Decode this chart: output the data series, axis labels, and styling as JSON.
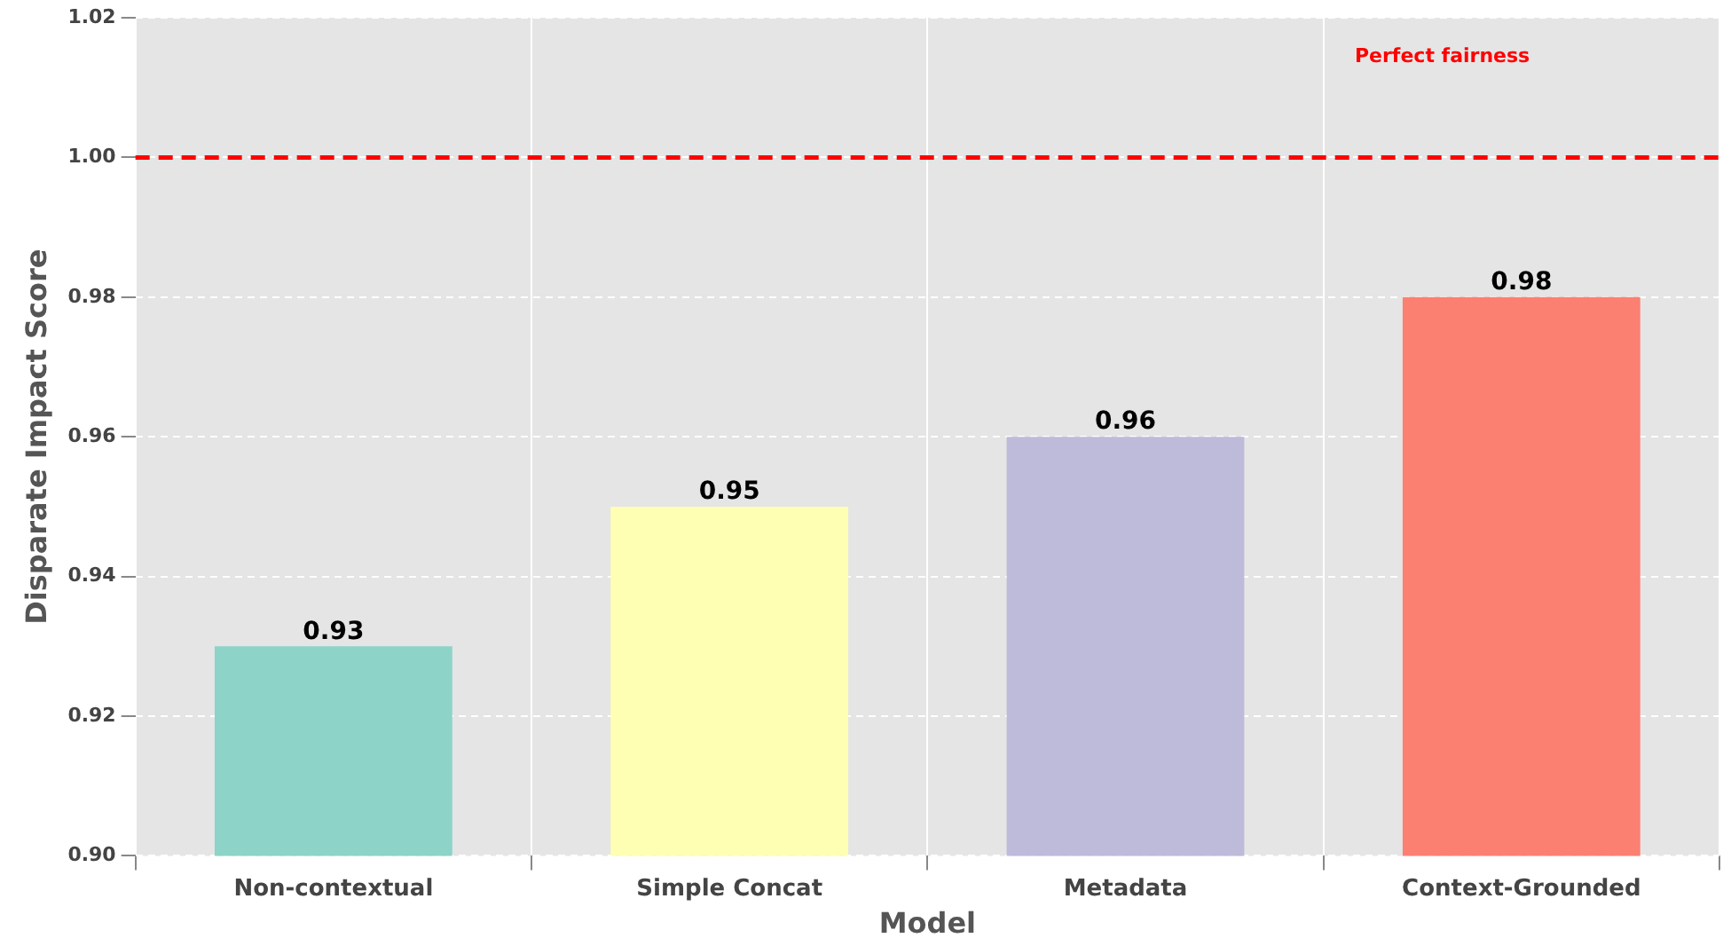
{
  "chart_data": {
    "type": "bar",
    "xlabel": "Model",
    "ylabel": "Disparate Impact Score",
    "categories": [
      "Non-contextual",
      "Simple Concat",
      "Metadata",
      "Context-Grounded"
    ],
    "values": [
      0.93,
      0.95,
      0.96,
      0.98
    ],
    "colors": [
      "#8dd3c7",
      "#ffffb3",
      "#bebada",
      "#fb8072"
    ],
    "ylim": [
      0.9,
      1.02
    ],
    "yticks": [
      {
        "value": 0.9,
        "label": "0.90"
      },
      {
        "value": 0.92,
        "label": "0.92"
      },
      {
        "value": 0.94,
        "label": "0.94"
      },
      {
        "value": 0.96,
        "label": "0.96"
      },
      {
        "value": 0.98,
        "label": "0.98"
      },
      {
        "value": 1.0,
        "label": "1.00"
      },
      {
        "value": 1.02,
        "label": "1.02"
      }
    ],
    "ref_lines": [
      {
        "axis": "y",
        "value": 1.0,
        "label": "Perfect fairness",
        "color": "#ff0000",
        "line_style": "dashed"
      }
    ],
    "data_labels": true,
    "grid": true,
    "legend": false
  }
}
